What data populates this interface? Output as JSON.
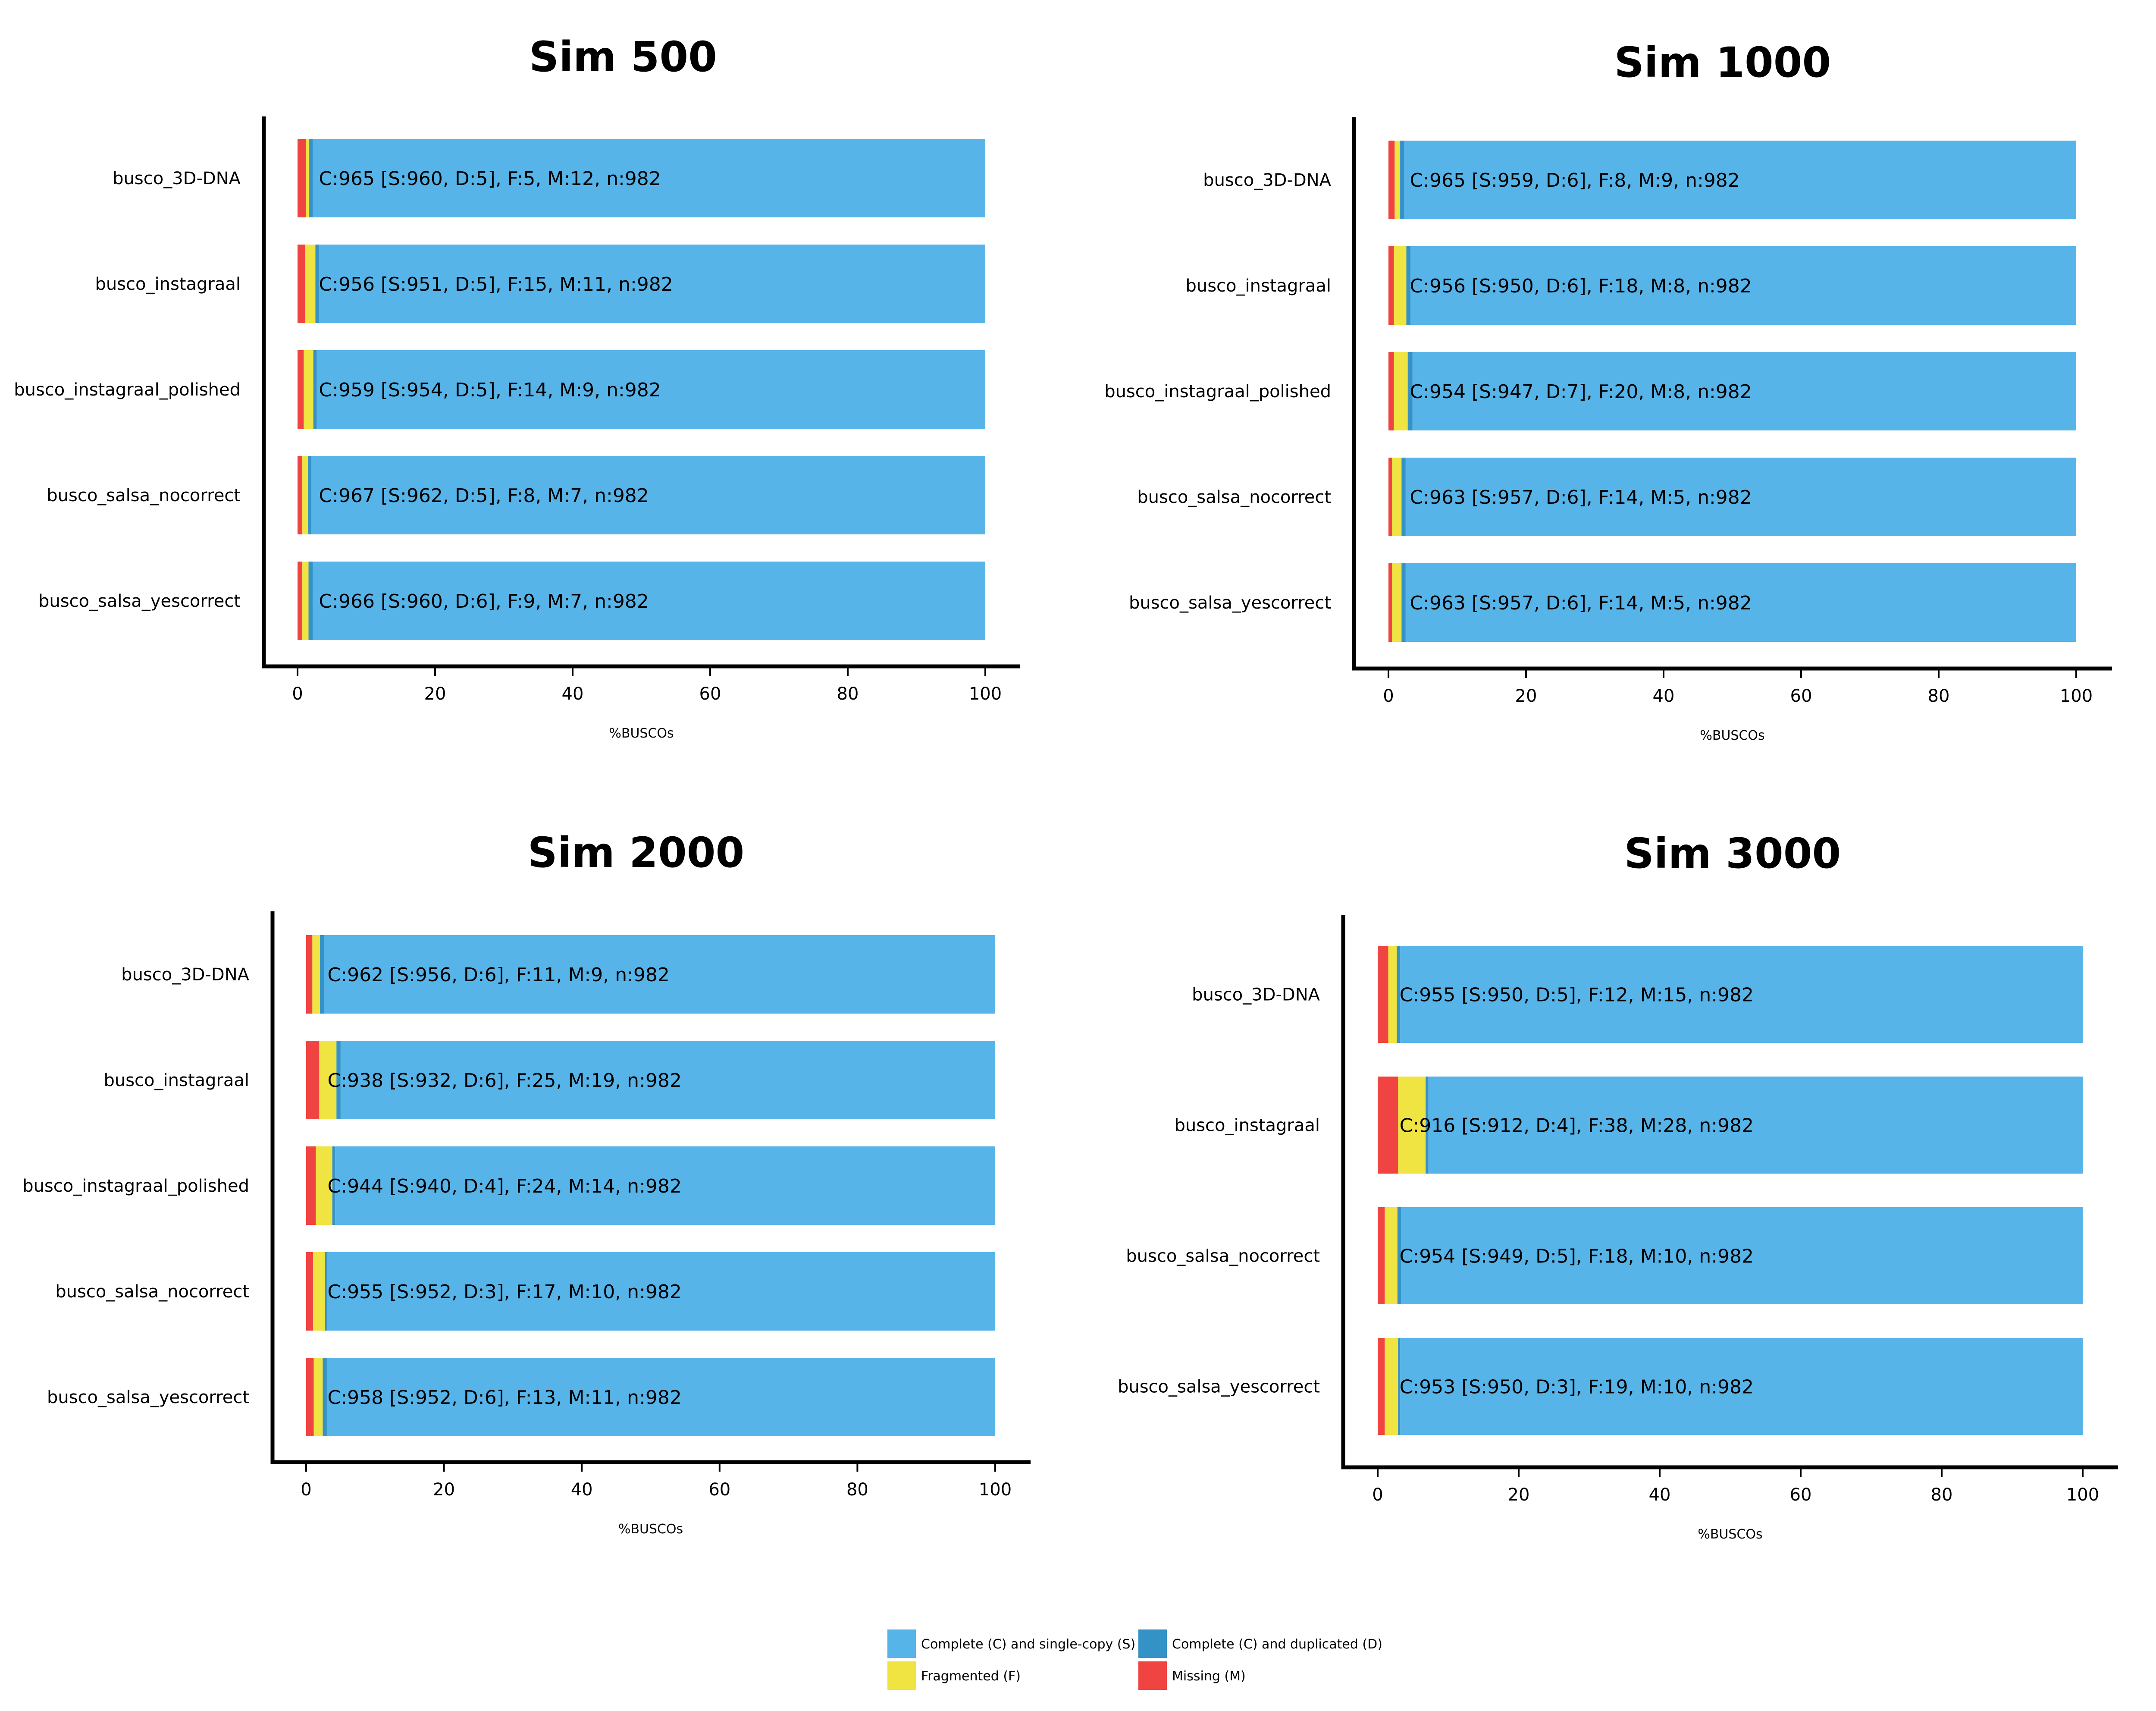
{
  "colors": {
    "single": "#56b4e9",
    "duplicated": "#3492c7",
    "fragmented": "#f0e442",
    "missing": "#f04442"
  },
  "legend": [
    {
      "key": "single",
      "label": "Complete (C) and single-copy (S)"
    },
    {
      "key": "duplicated",
      "label": "Complete (C) and duplicated (D)"
    },
    {
      "key": "fragmented",
      "label": "Fragmented (F)"
    },
    {
      "key": "missing",
      "label": "Missing (M)"
    }
  ],
  "chart_data": [
    {
      "type": "bar",
      "orientation": "horizontal",
      "stacked": true,
      "title": "Sim 500",
      "xlabel": "%BUSCOs",
      "xlim": [
        0,
        100
      ],
      "xticks": [
        0,
        20,
        40,
        60,
        80,
        100
      ],
      "categories": [
        "busco_3D-DNA",
        "busco_instagraal",
        "busco_instagraal_polished",
        "busco_salsa_nocorrect",
        "busco_salsa_yescorrect"
      ],
      "series": [
        {
          "key": "missing",
          "values": [
            1.2,
            1.1,
            0.9,
            0.7,
            0.7
          ]
        },
        {
          "key": "fragmented",
          "values": [
            0.5,
            1.5,
            1.4,
            0.8,
            0.9
          ]
        },
        {
          "key": "duplicated",
          "values": [
            0.5,
            0.5,
            0.5,
            0.5,
            0.6
          ]
        },
        {
          "key": "single",
          "values": [
            97.8,
            96.9,
            97.2,
            98.0,
            97.8
          ]
        }
      ],
      "labels": [
        "C:965 [S:960, D:5], F:5, M:12, n:982",
        "C:956 [S:951, D:5], F:15, M:11, n:982",
        "C:959 [S:954, D:5], F:14, M:9, n:982",
        "C:967 [S:962, D:5], F:8, M:7, n:982",
        "C:966 [S:960, D:6], F:9, M:7, n:982"
      ]
    },
    {
      "type": "bar",
      "orientation": "horizontal",
      "stacked": true,
      "title": "Sim 1000",
      "xlabel": "%BUSCOs",
      "xlim": [
        0,
        100
      ],
      "xticks": [
        0,
        20,
        40,
        60,
        80,
        100
      ],
      "categories": [
        "busco_3D-DNA",
        "busco_instagraal",
        "busco_instagraal_polished",
        "busco_salsa_nocorrect",
        "busco_salsa_yescorrect"
      ],
      "series": [
        {
          "key": "missing",
          "values": [
            0.9,
            0.8,
            0.8,
            0.5,
            0.5
          ]
        },
        {
          "key": "fragmented",
          "values": [
            0.8,
            1.8,
            2.0,
            1.4,
            1.4
          ]
        },
        {
          "key": "duplicated",
          "values": [
            0.6,
            0.6,
            0.7,
            0.6,
            0.6
          ]
        },
        {
          "key": "single",
          "values": [
            97.7,
            96.8,
            96.5,
            97.5,
            97.5
          ]
        }
      ],
      "labels": [
        "C:965 [S:959, D:6], F:8, M:9, n:982",
        "C:956 [S:950, D:6], F:18, M:8, n:982",
        "C:954 [S:947, D:7], F:20, M:8, n:982",
        "C:963 [S:957, D:6], F:14, M:5, n:982",
        "C:963 [S:957, D:6], F:14, M:5, n:982"
      ]
    },
    {
      "type": "bar",
      "orientation": "horizontal",
      "stacked": true,
      "title": "Sim 2000",
      "xlabel": "%BUSCOs",
      "xlim": [
        0,
        100
      ],
      "xticks": [
        0,
        20,
        40,
        60,
        80,
        100
      ],
      "categories": [
        "busco_3D-DNA",
        "busco_instagraal",
        "busco_instagraal_polished",
        "busco_salsa_nocorrect",
        "busco_salsa_yescorrect"
      ],
      "series": [
        {
          "key": "missing",
          "values": [
            0.9,
            1.9,
            1.4,
            1.0,
            1.1
          ]
        },
        {
          "key": "fragmented",
          "values": [
            1.1,
            2.5,
            2.4,
            1.7,
            1.3
          ]
        },
        {
          "key": "duplicated",
          "values": [
            0.6,
            0.6,
            0.4,
            0.3,
            0.6
          ]
        },
        {
          "key": "single",
          "values": [
            97.4,
            95.0,
            95.8,
            97.0,
            97.0
          ]
        }
      ],
      "labels": [
        "C:962 [S:956, D:6], F:11, M:9, n:982",
        "C:938 [S:932, D:6], F:25, M:19, n:982",
        "C:944 [S:940, D:4], F:24, M:14, n:982",
        "C:955 [S:952, D:3], F:17, M:10, n:982",
        "C:958 [S:952, D:6], F:13, M:11, n:982"
      ]
    },
    {
      "type": "bar",
      "orientation": "horizontal",
      "stacked": true,
      "title": "Sim 3000",
      "xlabel": "%BUSCOs",
      "xlim": [
        0,
        100
      ],
      "xticks": [
        0,
        20,
        40,
        60,
        80,
        100
      ],
      "categories": [
        "busco_3D-DNA",
        "busco_instagraal",
        "busco_salsa_nocorrect",
        "busco_salsa_yescorrect"
      ],
      "series": [
        {
          "key": "missing",
          "values": [
            1.5,
            2.9,
            1.0,
            1.0
          ]
        },
        {
          "key": "fragmented",
          "values": [
            1.2,
            3.9,
            1.8,
            1.9
          ]
        },
        {
          "key": "duplicated",
          "values": [
            0.5,
            0.4,
            0.5,
            0.3
          ]
        },
        {
          "key": "single",
          "values": [
            96.8,
            92.8,
            96.7,
            96.8
          ]
        }
      ],
      "labels": [
        "C:955 [S:950, D:5], F:12, M:15, n:982",
        "C:916 [S:912, D:4], F:38, M:28, n:982",
        "C:954 [S:949, D:5], F:18, M:10, n:982",
        "C:953 [S:950, D:3], F:19, M:10, n:982"
      ]
    }
  ]
}
